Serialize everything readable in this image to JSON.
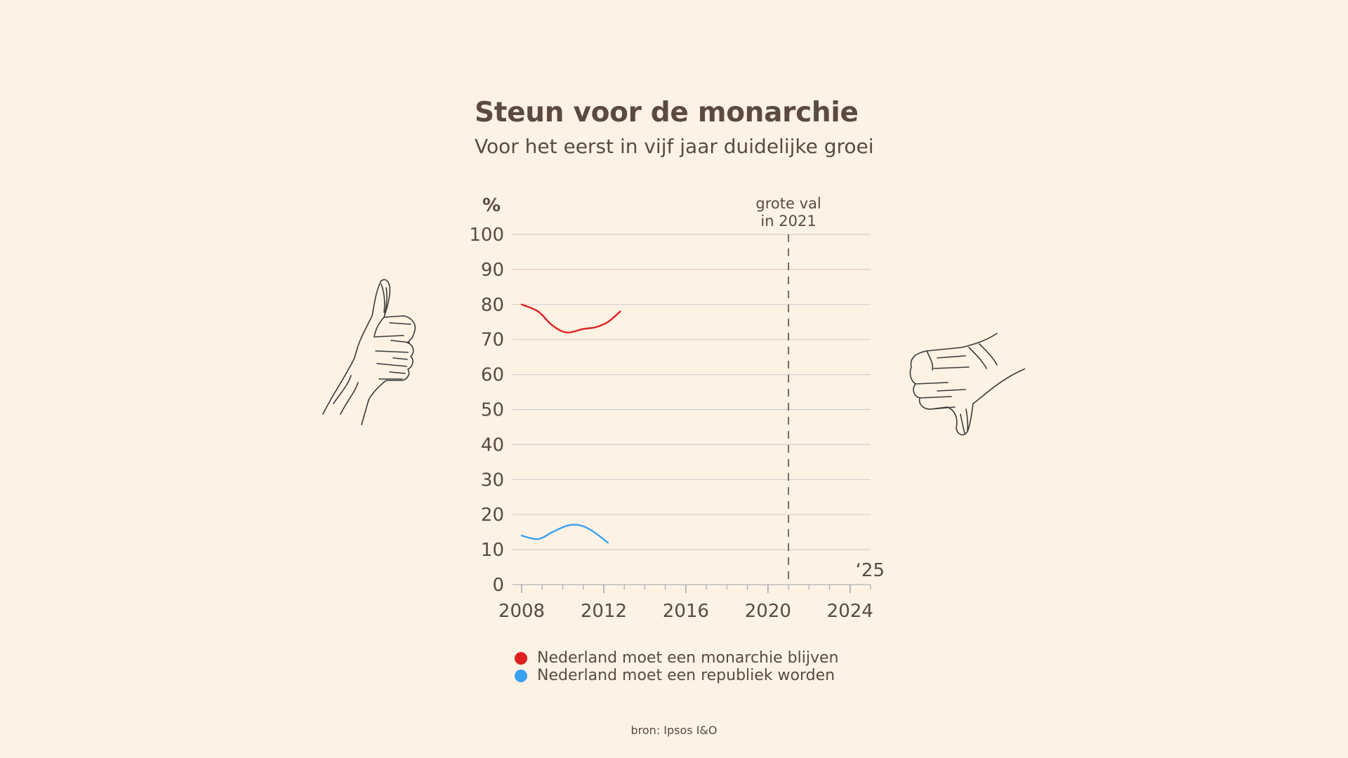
{
  "header": {
    "title": "Steun voor de monarchie",
    "subtitle": "Voor het eerst in vijf jaar duidelijke groei"
  },
  "colors": {
    "background": "#fdf2e4",
    "text": "#5a4a3f",
    "monarchie": "#e02020",
    "republiek": "#3aa0f0",
    "grid": "#cfcfcf"
  },
  "icons": {
    "left": "thumbs-up-sketch",
    "right": "thumbs-down-sketch"
  },
  "chart_data": {
    "type": "line",
    "ylabel": "%",
    "ylim": [
      0,
      100
    ],
    "yticks": [
      0,
      10,
      20,
      30,
      40,
      50,
      60,
      70,
      80,
      90,
      100
    ],
    "xlim": [
      2008,
      2025
    ],
    "xticks": [
      2008,
      2012,
      2016,
      2020,
      2024
    ],
    "x_end_label": "‘25",
    "grid": true,
    "annotation": {
      "x": 2021,
      "lines": [
        "grote val",
        "in 2021"
      ]
    },
    "series": [
      {
        "name": "Nederland moet een monarchie blijven",
        "color": "#e02020",
        "x": [
          2008.0,
          2008.8,
          2009.5,
          2010.2,
          2011.0,
          2011.6,
          2012.2,
          2012.8
        ],
        "values": [
          80,
          78,
          74,
          72,
          73,
          73.5,
          75,
          78
        ]
      },
      {
        "name": "Nederland moet een republiek worden",
        "color": "#3aa0f0",
        "x": [
          2008.0,
          2008.8,
          2009.5,
          2010.2,
          2010.8,
          2011.4,
          2012.2
        ],
        "values": [
          14,
          13,
          15,
          16.8,
          17,
          15.5,
          12
        ]
      }
    ],
    "source": "bron: Ipsos I&O"
  }
}
